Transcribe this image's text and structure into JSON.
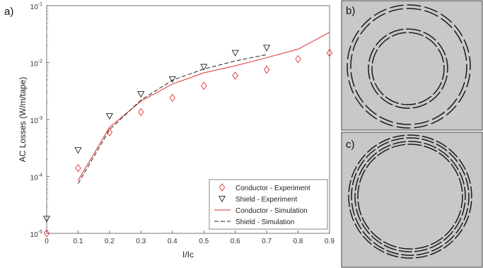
{
  "panels": {
    "a": "a)",
    "b": "b)",
    "c": "c)"
  },
  "chart_data": {
    "type": "line",
    "xlabel": "I/Ic",
    "ylabel": "AC Losses (W/m/tape)",
    "yscale": "log",
    "xlim": [
      0,
      0.9
    ],
    "ylim": [
      1e-05,
      0.1
    ],
    "x_ticks": [
      "0",
      "0.1",
      "0.2",
      "0.3",
      "0.4",
      "0.5",
      "0.6",
      "0.7",
      "0.8",
      "0.9"
    ],
    "y_ticks": [
      {
        "base": "10",
        "exp": "-5",
        "value": 1e-05
      },
      {
        "base": "10",
        "exp": "-4",
        "value": 0.0001
      },
      {
        "base": "10",
        "exp": "-3",
        "value": 0.001
      },
      {
        "base": "10",
        "exp": "-2",
        "value": 0.01
      },
      {
        "base": "10",
        "exp": "-1",
        "value": 0.1
      }
    ],
    "legend_position": "bottom-right",
    "series": [
      {
        "name": "Conductor - Experiment",
        "marker": "diamond",
        "color": "#e03030",
        "points": [
          [
            0,
            1e-05
          ],
          [
            0.1,
            0.00014
          ],
          [
            0.2,
            0.0006
          ],
          [
            0.3,
            0.00135
          ],
          [
            0.4,
            0.0024
          ],
          [
            0.5,
            0.0039
          ],
          [
            0.6,
            0.0059
          ],
          [
            0.7,
            0.0075
          ],
          [
            0.8,
            0.0115
          ],
          [
            0.9,
            0.0148
          ]
        ]
      },
      {
        "name": "Shield - Experiment",
        "marker": "triangle-down",
        "color": "#222222",
        "points": [
          [
            0,
            1.8e-05
          ],
          [
            0.1,
            0.00029
          ],
          [
            0.2,
            0.00115
          ],
          [
            0.3,
            0.0028
          ],
          [
            0.4,
            0.0051
          ],
          [
            0.5,
            0.0084
          ],
          [
            0.6,
            0.0148
          ],
          [
            0.7,
            0.0182
          ]
        ]
      },
      {
        "name": "Conductor - Simulation",
        "line": "solid",
        "color": "#e03030",
        "points": [
          [
            0.1,
            8.5e-05
          ],
          [
            0.2,
            0.00073
          ],
          [
            0.3,
            0.0021
          ],
          [
            0.4,
            0.0042
          ],
          [
            0.5,
            0.0066
          ],
          [
            0.6,
            0.0088
          ],
          [
            0.7,
            0.0122
          ],
          [
            0.8,
            0.0172
          ],
          [
            0.9,
            0.034
          ]
        ]
      },
      {
        "name": "Shield - Simulation",
        "line": "dashed",
        "color": "#222222",
        "points": [
          [
            0.1,
            7.5e-05
          ],
          [
            0.2,
            0.00066
          ],
          [
            0.3,
            0.0022
          ],
          [
            0.4,
            0.0049
          ],
          [
            0.5,
            0.0077
          ],
          [
            0.6,
            0.0107
          ],
          [
            0.7,
            0.0138
          ]
        ]
      }
    ]
  },
  "colors": {
    "panel_bg": "#c8c8c8",
    "ring_stroke": "#1a1a1a",
    "axis_color": "#444444"
  }
}
